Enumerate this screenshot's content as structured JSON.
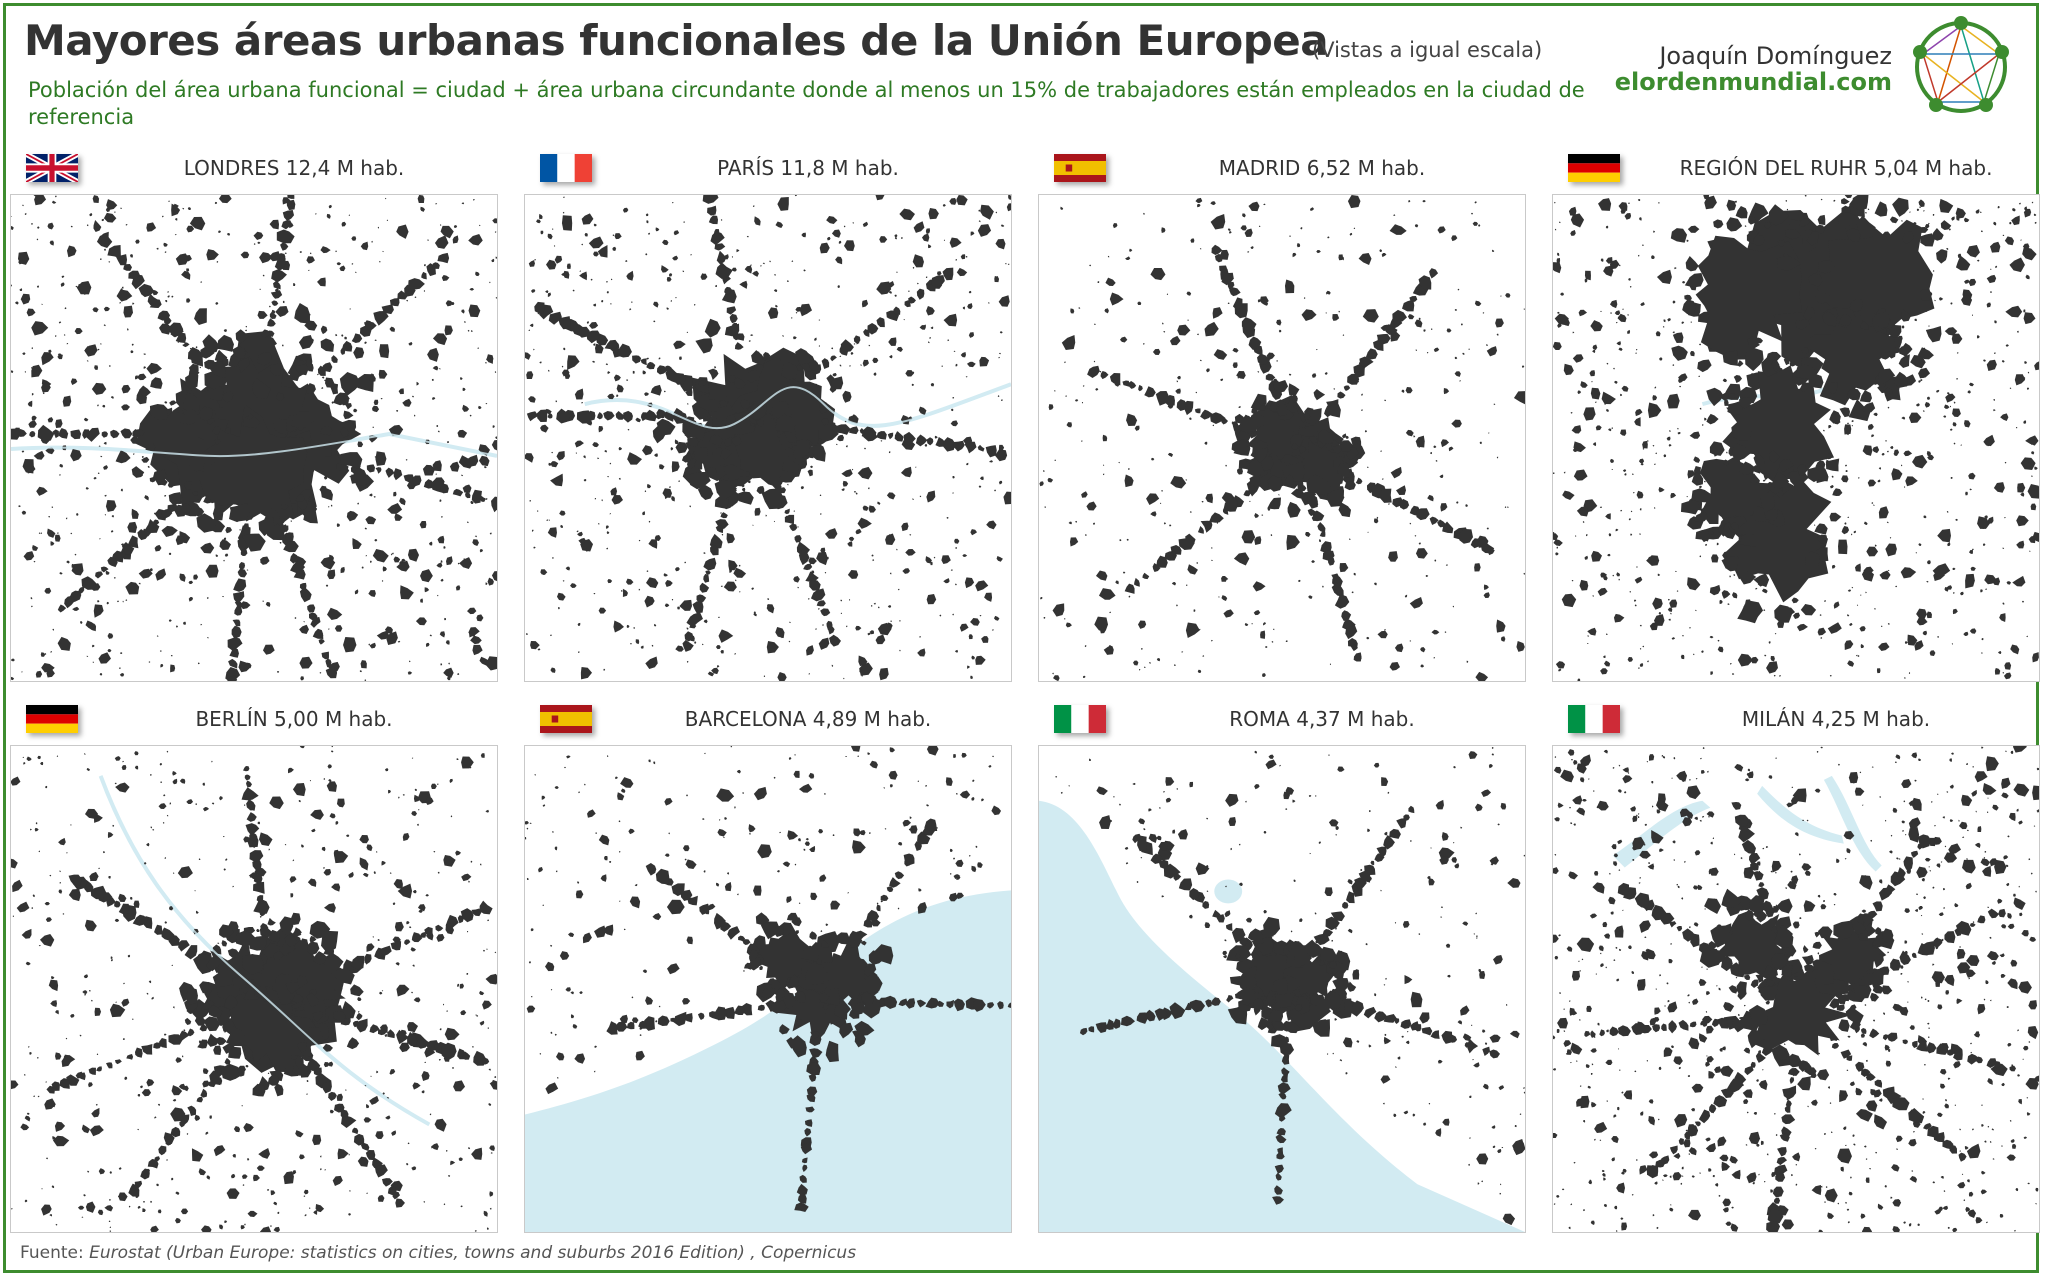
{
  "header": {
    "title": "Mayores áreas urbanas funcionales de la Unión Europea",
    "scale_note": "(Vistas a igual escala)",
    "subtitle": "Población del área urbana funcional = ciudad + área urbana circundante donde al menos un 15% de trabajadores están empleados en la ciudad de referencia",
    "author": "Joaquín Domínguez",
    "site": "elordenmundial.com"
  },
  "colors": {
    "urban": "#333333",
    "water": "#d2ebf2",
    "frame": "#3d8c2f",
    "subtitle_text": "#2e7a24"
  },
  "cities": [
    {
      "id": "londres",
      "label": "LONDRES 12,4 M hab.",
      "name": "Londres",
      "population_millions": 12.4,
      "flag": "uk",
      "flag_icon": "uk-flag-icon"
    },
    {
      "id": "paris",
      "label": "PARÍS 11,8 M hab.",
      "name": "París",
      "population_millions": 11.8,
      "flag": "fr",
      "flag_icon": "france-flag-icon"
    },
    {
      "id": "madrid",
      "label": "MADRID 6,52 M hab.",
      "name": "Madrid",
      "population_millions": 6.52,
      "flag": "es",
      "flag_icon": "spain-flag-icon"
    },
    {
      "id": "ruhr",
      "label": "REGIÓN DEL RUHR 5,04 M hab.",
      "name": "Región del Ruhr",
      "population_millions": 5.04,
      "flag": "de",
      "flag_icon": "germany-flag-icon"
    },
    {
      "id": "berlin",
      "label": "BERLÍN 5,00 M hab.",
      "name": "Berlín",
      "population_millions": 5.0,
      "flag": "de",
      "flag_icon": "germany-flag-icon"
    },
    {
      "id": "barcelona",
      "label": "BARCELONA 4,89 M hab.",
      "name": "Barcelona",
      "population_millions": 4.89,
      "flag": "es",
      "flag_icon": "spain-flag-icon"
    },
    {
      "id": "roma",
      "label": "ROMA 4,37 M hab.",
      "name": "Roma",
      "population_millions": 4.37,
      "flag": "it",
      "flag_icon": "italy-flag-icon"
    },
    {
      "id": "milan",
      "label": "MILÁN 4,25 M hab.",
      "name": "Milán",
      "population_millions": 4.25,
      "flag": "it",
      "flag_icon": "italy-flag-icon"
    }
  ],
  "footer": {
    "source_prefix": "Fuente: ",
    "source_text": "Eurostat (Urban Europe: statistics on cities, towns and suburbs 2016 Edition) , Copernicus"
  }
}
